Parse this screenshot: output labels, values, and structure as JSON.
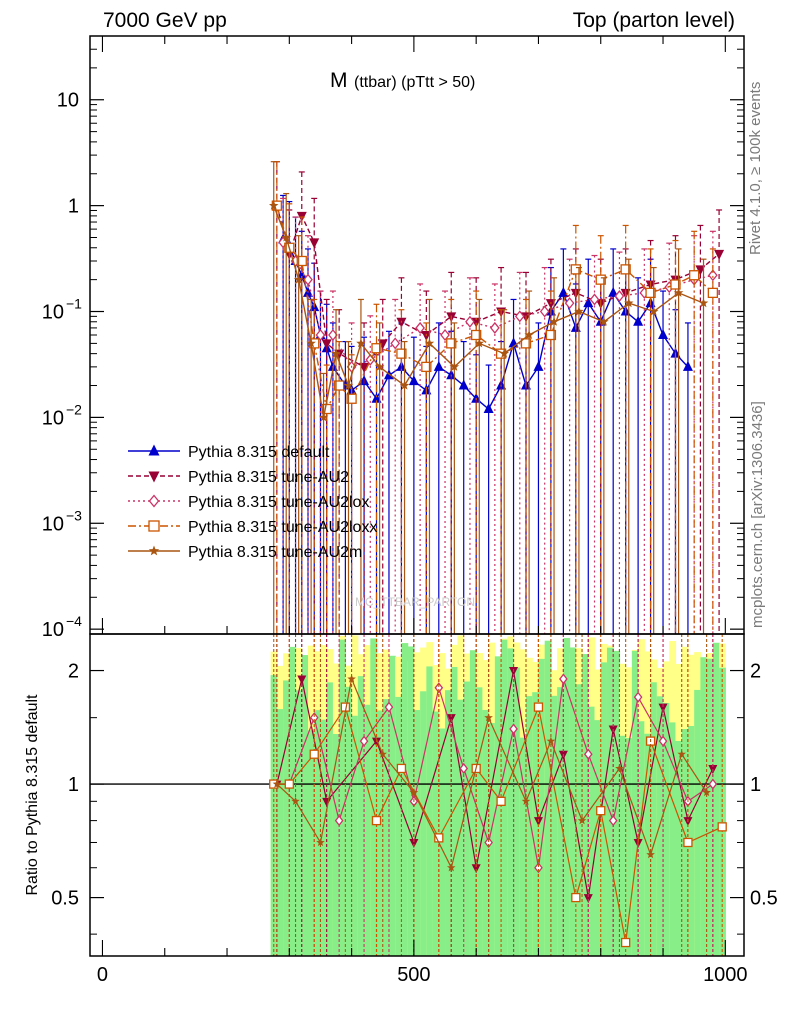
{
  "header": {
    "left": "7000 GeV pp",
    "right": "Top (parton level)"
  },
  "side_labels": {
    "rivet": "Rivet 4.1.0, ≥ 100k events",
    "mcplots": "mcplots.cern.ch [arXiv:1306.3436]"
  },
  "chart_data": [
    {
      "type": "line",
      "panel": "main",
      "title": "M (ttbar) (pTtt > 50)",
      "title_main": "M",
      "title_sub": "(ttbar) (pTtt > 50)",
      "xlabel": "",
      "ylabel": "",
      "yscale": "log",
      "xlim": [
        -20,
        1030
      ],
      "ylim": [
        9e-05,
        40
      ],
      "yticks": [
        {
          "base": "10",
          "exp": "−4",
          "value": 0.0001
        },
        {
          "base": "10",
          "exp": "−3",
          "value": 0.001
        },
        {
          "base": "10",
          "exp": "−2",
          "value": 0.01
        },
        {
          "base": "10",
          "exp": "−1",
          "value": 0.1
        },
        {
          "base": "1",
          "exp": "",
          "value": 1
        },
        {
          "base": "10",
          "exp": "",
          "value": 10
        }
      ],
      "watermark": "MC_TTBAR_PARTON",
      "legend_position": "middle-left",
      "series": [
        {
          "name": "Pythia 8.315 default",
          "color": "#0000cc",
          "marker": "triangle-up",
          "dash": "",
          "points": [
            [
              290,
              0.48
            ],
            [
              300,
              0.42
            ],
            [
              310,
              0.3
            ],
            [
              320,
              0.22
            ],
            [
              330,
              0.15
            ],
            [
              340,
              0.11
            ],
            [
              350,
              0.06
            ],
            [
              360,
              0.045
            ],
            [
              370,
              0.03
            ],
            [
              390,
              0.02
            ],
            [
              400,
              0.018
            ],
            [
              420,
              0.022
            ],
            [
              440,
              0.015
            ],
            [
              460,
              0.025
            ],
            [
              480,
              0.03
            ],
            [
              500,
              0.022
            ],
            [
              520,
              0.018
            ],
            [
              540,
              0.03
            ],
            [
              560,
              0.025
            ],
            [
              580,
              0.02
            ],
            [
              600,
              0.015
            ],
            [
              620,
              0.012
            ],
            [
              640,
              0.02
            ],
            [
              660,
              0.05
            ],
            [
              680,
              0.02
            ],
            [
              700,
              0.03
            ],
            [
              720,
              0.1
            ],
            [
              740,
              0.15
            ],
            [
              760,
              0.07
            ],
            [
              780,
              0.12
            ],
            [
              800,
              0.08
            ],
            [
              820,
              0.15
            ],
            [
              840,
              0.1
            ],
            [
              860,
              0.08
            ],
            [
              880,
              0.12
            ],
            [
              900,
              0.06
            ],
            [
              920,
              0.04
            ],
            [
              940,
              0.03
            ]
          ]
        },
        {
          "name": "Pythia 8.315 tune-AU2",
          "color": "#990033",
          "marker": "triangle-down",
          "dash": "5,3",
          "points": [
            [
              280,
              1.0
            ],
            [
              300,
              0.35
            ],
            [
              320,
              0.8
            ],
            [
              340,
              0.45
            ],
            [
              360,
              0.05
            ],
            [
              380,
              0.04
            ],
            [
              420,
              0.03
            ],
            [
              450,
              0.05
            ],
            [
              480,
              0.08
            ],
            [
              520,
              0.06
            ],
            [
              560,
              0.09
            ],
            [
              600,
              0.08
            ],
            [
              640,
              0.1
            ],
            [
              680,
              0.09
            ],
            [
              720,
              0.12
            ],
            [
              760,
              0.15
            ],
            [
              800,
              0.12
            ],
            [
              840,
              0.15
            ],
            [
              880,
              0.18
            ],
            [
              920,
              0.2
            ],
            [
              960,
              0.25
            ],
            [
              990,
              0.35
            ]
          ]
        },
        {
          "name": "Pythia 8.315 tune-AU2lox",
          "color": "#cc3366",
          "marker": "diamond-open",
          "dash": "2,3",
          "points": [
            [
              290,
              0.45
            ],
            [
              310,
              0.3
            ],
            [
              330,
              0.2
            ],
            [
              350,
              0.06
            ],
            [
              370,
              0.06
            ],
            [
              400,
              0.03
            ],
            [
              430,
              0.035
            ],
            [
              470,
              0.05
            ],
            [
              510,
              0.07
            ],
            [
              550,
              0.06
            ],
            [
              590,
              0.08
            ],
            [
              630,
              0.07
            ],
            [
              670,
              0.09
            ],
            [
              710,
              0.1
            ],
            [
              750,
              0.12
            ],
            [
              790,
              0.13
            ],
            [
              830,
              0.14
            ],
            [
              870,
              0.15
            ],
            [
              910,
              0.17
            ],
            [
              950,
              0.2
            ],
            [
              980,
              0.22
            ]
          ]
        },
        {
          "name": "Pythia 8.315 tune-AU2loxx",
          "color": "#cc5500",
          "marker": "square-open",
          "dash": "8,3,2,3",
          "points": [
            [
              280,
              1.0
            ],
            [
              300,
              0.4
            ],
            [
              320,
              0.3
            ],
            [
              340,
              0.05
            ],
            [
              360,
              0.012
            ],
            [
              380,
              0.02
            ],
            [
              400,
              0.015
            ],
            [
              440,
              0.045
            ],
            [
              480,
              0.04
            ],
            [
              520,
              0.03
            ],
            [
              560,
              0.05
            ],
            [
              600,
              0.06
            ],
            [
              640,
              0.04
            ],
            [
              680,
              0.05
            ],
            [
              720,
              0.06
            ],
            [
              760,
              0.25
            ],
            [
              800,
              0.2
            ],
            [
              840,
              0.25
            ],
            [
              880,
              0.15
            ],
            [
              920,
              0.18
            ],
            [
              950,
              0.22
            ],
            [
              980,
              0.15
            ]
          ]
        },
        {
          "name": "Pythia 8.315 tune-AU2m",
          "color": "#aa5511",
          "marker": "star",
          "dash": "",
          "points": [
            [
              275,
              1.0
            ],
            [
              295,
              0.5
            ],
            [
              315,
              0.2
            ],
            [
              335,
              0.05
            ],
            [
              355,
              0.01
            ],
            [
              375,
              0.04
            ],
            [
              395,
              0.02
            ],
            [
              415,
              0.05
            ],
            [
              445,
              0.03
            ],
            [
              485,
              0.02
            ],
            [
              525,
              0.05
            ],
            [
              565,
              0.03
            ],
            [
              605,
              0.05
            ],
            [
              645,
              0.04
            ],
            [
              685,
              0.06
            ],
            [
              725,
              0.08
            ],
            [
              765,
              0.1
            ],
            [
              805,
              0.08
            ],
            [
              845,
              0.12
            ],
            [
              885,
              0.1
            ],
            [
              925,
              0.15
            ],
            [
              965,
              0.12
            ]
          ]
        }
      ]
    },
    {
      "type": "line",
      "panel": "ratio",
      "ylabel": "Ratio to Pythia 8.315 default",
      "xlabel": "",
      "yscale": "log",
      "xlim": [
        -20,
        1030
      ],
      "ylim": [
        0.35,
        2.5
      ],
      "yticks": [
        0.5,
        1,
        2
      ],
      "ytick_labels": [
        "0.5",
        "1",
        "2"
      ],
      "xticks": [
        0,
        500,
        1000
      ],
      "xtick_labels": [
        "0",
        "500",
        "1000"
      ],
      "reference_line": 1,
      "band_range": [
        270,
        1000
      ],
      "band_colors": {
        "inner": "#88ee88",
        "outer": "#ffff88"
      },
      "series": [
        {
          "name": "Pythia 8.315 tune-AU2",
          "color": "#990033",
          "marker": "triangle-down",
          "points": [
            [
              280,
              1.0
            ],
            [
              320,
              1.9
            ],
            [
              360,
              0.9
            ],
            [
              440,
              1.3
            ],
            [
              500,
              0.7
            ],
            [
              560,
              1.5
            ],
            [
              600,
              0.6
            ],
            [
              660,
              2.0
            ],
            [
              700,
              0.8
            ],
            [
              740,
              1.2
            ],
            [
              780,
              0.5
            ],
            [
              820,
              1.4
            ],
            [
              860,
              0.7
            ],
            [
              900,
              1.6
            ],
            [
              940,
              0.8
            ],
            [
              980,
              1.1
            ]
          ]
        },
        {
          "name": "Pythia 8.315 tune-AU2lox",
          "color": "#cc3366",
          "marker": "diamond-open",
          "points": [
            [
              300,
              1.0
            ],
            [
              340,
              1.5
            ],
            [
              380,
              0.8
            ],
            [
              420,
              1.3
            ],
            [
              460,
              1.6
            ],
            [
              500,
              0.9
            ],
            [
              540,
              1.8
            ],
            [
              580,
              1.1
            ],
            [
              620,
              0.7
            ],
            [
              660,
              1.4
            ],
            [
              700,
              0.6
            ],
            [
              740,
              1.9
            ],
            [
              780,
              1.2
            ],
            [
              820,
              0.8
            ],
            [
              860,
              1.7
            ],
            [
              900,
              1.3
            ],
            [
              940,
              0.9
            ],
            [
              980,
              1.0
            ]
          ]
        },
        {
          "name": "Pythia 8.315 tune-AU2loxx",
          "color": "#cc5500",
          "marker": "square-open",
          "points": [
            [
              275,
              1.0
            ],
            [
              300,
              1.0
            ],
            [
              340,
              1.2
            ],
            [
              390,
              1.6
            ],
            [
              440,
              0.8
            ],
            [
              480,
              1.1
            ],
            [
              540,
              0.72
            ],
            [
              600,
              1.1
            ],
            [
              640,
              0.9
            ],
            [
              700,
              1.6
            ],
            [
              760,
              0.5
            ],
            [
              800,
              0.85
            ],
            [
              840,
              0.38
            ],
            [
              880,
              1.3
            ],
            [
              940,
              0.7
            ],
            [
              995,
              0.77
            ]
          ]
        },
        {
          "name": "Pythia 8.315 tune-AU2m",
          "color": "#aa5511",
          "marker": "star",
          "points": [
            [
              280,
              1.0
            ],
            [
              310,
              0.9
            ],
            [
              350,
              0.7
            ],
            [
              400,
              1.9
            ],
            [
              450,
              1.2
            ],
            [
              500,
              0.95
            ],
            [
              560,
              0.6
            ],
            [
              620,
              1.5
            ],
            [
              680,
              0.9
            ],
            [
              720,
              1.3
            ],
            [
              770,
              0.8
            ],
            [
              830,
              1.1
            ],
            [
              880,
              0.65
            ],
            [
              930,
              1.2
            ],
            [
              970,
              0.95
            ]
          ]
        }
      ]
    }
  ]
}
